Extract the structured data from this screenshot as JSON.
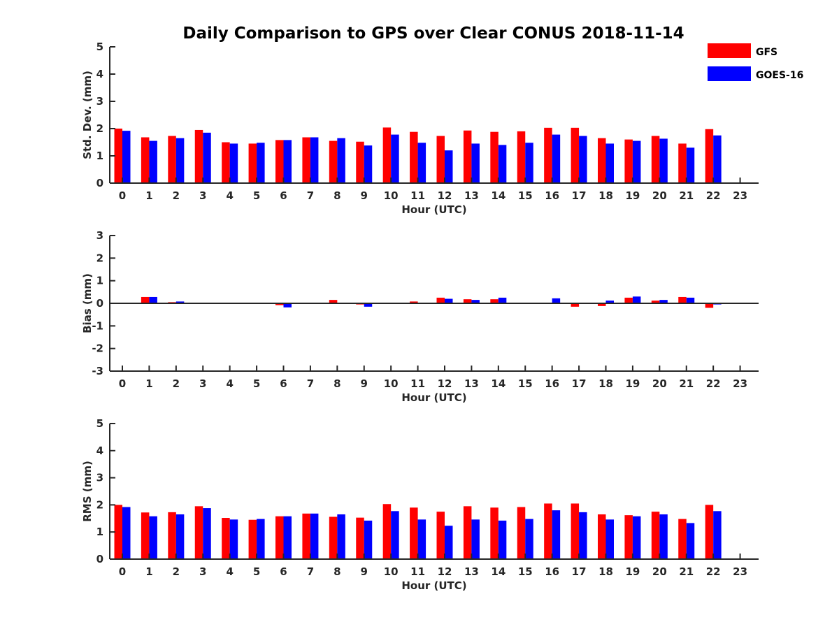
{
  "chart_data": [
    {
      "type": "bar",
      "title": "Daily Comparison to GPS over Clear CONUS 2018-11-14",
      "xlabel": "Hour (UTC)",
      "ylabel": "Std. Dev. (mm)",
      "ylim": [
        0,
        5
      ],
      "yticks": [
        "0",
        "1",
        "2",
        "3",
        "4",
        "5"
      ],
      "categories": [
        "0",
        "1",
        "2",
        "3",
        "4",
        "5",
        "6",
        "7",
        "8",
        "9",
        "10",
        "11",
        "12",
        "13",
        "14",
        "15",
        "16",
        "17",
        "18",
        "19",
        "20",
        "21",
        "22",
        "23"
      ],
      "series": [
        {
          "name": "GFS",
          "color": "#ff0000",
          "values": [
            2.0,
            1.68,
            1.73,
            1.95,
            1.5,
            1.45,
            1.58,
            1.68,
            1.55,
            1.52,
            2.04,
            1.88,
            1.73,
            1.93,
            1.88,
            1.9,
            2.03,
            2.03,
            1.65,
            1.6,
            1.73,
            1.45,
            1.98,
            null
          ]
        },
        {
          "name": "GOES-16",
          "color": "#0000ff",
          "values": [
            1.92,
            1.55,
            1.65,
            1.85,
            1.45,
            1.48,
            1.58,
            1.68,
            1.65,
            1.38,
            1.78,
            1.48,
            1.2,
            1.45,
            1.4,
            1.48,
            1.78,
            1.73,
            1.45,
            1.55,
            1.63,
            1.3,
            1.75,
            null
          ]
        }
      ],
      "legend": "top-right"
    },
    {
      "type": "bar",
      "xlabel": "Hour (UTC)",
      "ylabel": "Bias (mm)",
      "ylim": [
        -3,
        3
      ],
      "yticks": [
        "-3",
        "-2",
        "-1",
        "0",
        "1",
        "2",
        "3"
      ],
      "categories": [
        "0",
        "1",
        "2",
        "3",
        "4",
        "5",
        "6",
        "7",
        "8",
        "9",
        "10",
        "11",
        "12",
        "13",
        "14",
        "15",
        "16",
        "17",
        "18",
        "19",
        "20",
        "21",
        "22",
        "23"
      ],
      "series": [
        {
          "name": "GFS",
          "color": "#ff0000",
          "values": [
            0.02,
            0.28,
            0.05,
            0.02,
            0.02,
            0.0,
            -0.08,
            0.02,
            0.15,
            -0.05,
            0.0,
            0.08,
            0.25,
            0.18,
            0.18,
            -0.03,
            0.03,
            -0.15,
            -0.12,
            0.25,
            0.12,
            0.28,
            -0.2,
            null
          ]
        },
        {
          "name": "GOES-16",
          "color": "#0000ff",
          "values": [
            0.02,
            0.28,
            0.08,
            0.02,
            0.02,
            0.0,
            -0.18,
            0.0,
            0.03,
            -0.15,
            0.0,
            0.0,
            0.2,
            0.15,
            0.25,
            0.02,
            0.22,
            0.03,
            0.12,
            0.3,
            0.15,
            0.25,
            -0.05,
            null
          ]
        }
      ]
    },
    {
      "type": "bar",
      "xlabel": "Hour (UTC)",
      "ylabel": "RMS (mm)",
      "ylim": [
        0,
        5
      ],
      "yticks": [
        "0",
        "1",
        "2",
        "3",
        "4",
        "5"
      ],
      "categories": [
        "0",
        "1",
        "2",
        "3",
        "4",
        "5",
        "6",
        "7",
        "8",
        "9",
        "10",
        "11",
        "12",
        "13",
        "14",
        "15",
        "16",
        "17",
        "18",
        "19",
        "20",
        "21",
        "22",
        "23"
      ],
      "series": [
        {
          "name": "GFS",
          "color": "#ff0000",
          "values": [
            2.0,
            1.72,
            1.73,
            1.95,
            1.52,
            1.45,
            1.58,
            1.68,
            1.56,
            1.53,
            2.03,
            1.9,
            1.75,
            1.95,
            1.9,
            1.92,
            2.05,
            2.05,
            1.65,
            1.62,
            1.75,
            1.48,
            2.0,
            null
          ]
        },
        {
          "name": "GOES-16",
          "color": "#0000ff",
          "values": [
            1.92,
            1.58,
            1.65,
            1.88,
            1.46,
            1.48,
            1.58,
            1.68,
            1.65,
            1.42,
            1.77,
            1.46,
            1.23,
            1.46,
            1.42,
            1.48,
            1.8,
            1.73,
            1.46,
            1.58,
            1.65,
            1.33,
            1.77,
            null
          ]
        }
      ]
    }
  ]
}
